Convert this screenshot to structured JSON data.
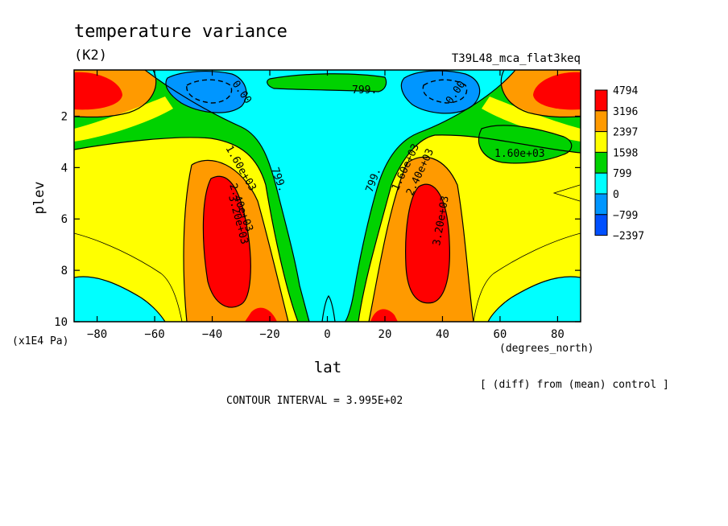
{
  "chart_data": {
    "type": "contour",
    "title": "temperature variance",
    "units": "(K2)",
    "experiment": "T39L48_mca_flat3keq",
    "xlabel": "lat",
    "x_units": "(degrees_north)",
    "ylabel": "plev",
    "y_units": "(x1E4 Pa)",
    "xlim": [
      -88,
      88
    ],
    "ylim": [
      10,
      0.2
    ],
    "x_ticks": [
      -80,
      -60,
      -40,
      -20,
      0,
      20,
      40,
      60,
      80
    ],
    "x_tick_labels": [
      "−80",
      "−60",
      "−40",
      "−20",
      "0",
      "20",
      "40",
      "60",
      "80"
    ],
    "y_ticks": [
      2,
      4,
      6,
      8,
      10
    ],
    "y_tick_labels": [
      "2",
      "4",
      "6",
      "8",
      "10"
    ],
    "colorbar": {
      "levels": [
        "4794",
        "3196",
        "2397",
        "1598",
        "799",
        "0",
        "−799",
        "−2397"
      ],
      "colors": [
        "#ff0000",
        "#ff9a00",
        "#ffff00",
        "#00d200",
        "#00ffff",
        "#0096ff",
        "#0050ff"
      ]
    },
    "contour_labels": [
      "0.00",
      "799.",
      "0.00",
      "1.60e+03",
      "2.40e+03",
      "3.20e+03",
      "799.",
      "799.",
      "1.60e+03",
      "2.40e+03",
      "3.20e+03",
      "1.60e+03"
    ],
    "contour_interval_text": "CONTOUR INTERVAL = 3.995E+02",
    "footnote": "[ (diff) from (mean) control ]"
  }
}
